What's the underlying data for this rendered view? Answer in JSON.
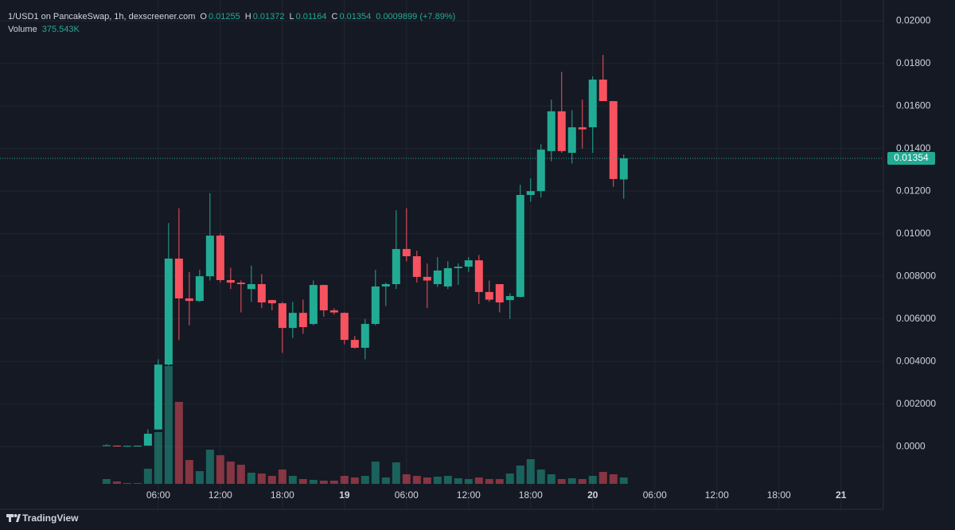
{
  "header": {
    "symbol": "1/USD1 on PancakeSwap, 1h, dexscreener.com",
    "open_label": "O",
    "open": "0.01255",
    "high_label": "H",
    "high": "0.01372",
    "low_label": "L",
    "low": "0.01164",
    "close_label": "C",
    "close": "0.01354",
    "change": "0.0009899 (+7.89%)",
    "volume_label": "Volume",
    "volume": "375.543K"
  },
  "last_price_label": "0.01354",
  "brand": "TradingView",
  "chart_data": {
    "type": "candlestick",
    "x": [
      1,
      2,
      3,
      4,
      5,
      6,
      7,
      8,
      9,
      10,
      11,
      12,
      13,
      14,
      15,
      16,
      17,
      18,
      19,
      20,
      21,
      22,
      23,
      24,
      25,
      26,
      27,
      28,
      29,
      30,
      31,
      32,
      33,
      34,
      35,
      36,
      37,
      38,
      39,
      40,
      41,
      42,
      43,
      44,
      45,
      46,
      47,
      48,
      49,
      50,
      51
    ],
    "open": [
      5e-05,
      4e-05,
      3e-05,
      3e-05,
      4e-05,
      0.0008,
      0.00385,
      0.00883,
      0.00696,
      0.00684,
      0.008,
      0.00991,
      0.00782,
      0.0077,
      0.0074,
      0.00763,
      0.00688,
      0.00673,
      0.00557,
      0.00628,
      0.00576,
      0.00759,
      0.0064,
      0.00628,
      0.00501,
      0.00464,
      0.00576,
      0.00752,
      0.00763,
      0.00928,
      0.00894,
      0.00797,
      0.00763,
      0.00752,
      0.00838,
      0.00845,
      0.00875,
      0.00726,
      0.00763,
      0.00688,
      0.00703,
      0.01182,
      0.012,
      0.01388,
      0.01575,
      0.0138,
      0.015,
      0.015,
      0.01724,
      0.01623,
      0.01255
    ],
    "high": [
      0.0001,
      5e-05,
      4e-05,
      4e-05,
      0.0008,
      0.0041,
      0.0105,
      0.0112,
      0.0082,
      0.0083,
      0.0119,
      0.01,
      0.0084,
      0.0078,
      0.0085,
      0.0081,
      0.0069,
      0.0068,
      0.0068,
      0.0069,
      0.0078,
      0.0076,
      0.0065,
      0.0063,
      0.0052,
      0.006,
      0.0083,
      0.0077,
      0.0111,
      0.0112,
      0.0092,
      0.0086,
      0.0089,
      0.0087,
      0.0086,
      0.0089,
      0.009,
      0.0078,
      0.0076,
      0.0072,
      0.0123,
      0.0126,
      0.0142,
      0.0163,
      0.0176,
      0.0158,
      0.0163,
      0.0174,
      0.0184,
      0.0162,
      0.01372
    ],
    "low": [
      3e-05,
      2e-05,
      2e-05,
      2e-05,
      4e-05,
      0.0008,
      0.0038,
      0.005,
      0.0057,
      0.0068,
      0.0078,
      0.0077,
      0.0074,
      0.0063,
      0.0068,
      0.0065,
      0.0064,
      0.0044,
      0.0051,
      0.0053,
      0.0057,
      0.0061,
      0.0062,
      0.0048,
      0.0046,
      0.0041,
      0.0057,
      0.0066,
      0.0074,
      0.0087,
      0.0077,
      0.0065,
      0.0075,
      0.0074,
      0.0076,
      0.0082,
      0.0067,
      0.0068,
      0.0063,
      0.006,
      0.007,
      0.0115,
      0.0117,
      0.0134,
      0.0138,
      0.0133,
      0.014,
      0.0138,
      0.0163,
      0.0122,
      0.01164
    ],
    "close": [
      6e-05,
      3e-05,
      3e-05,
      4e-05,
      0.0006,
      0.00385,
      0.00883,
      0.00696,
      0.00684,
      0.008,
      0.00991,
      0.00782,
      0.0077,
      0.00763,
      0.00763,
      0.00677,
      0.00673,
      0.00557,
      0.00628,
      0.00561,
      0.00759,
      0.0064,
      0.0063,
      0.00501,
      0.00464,
      0.00576,
      0.00752,
      0.00763,
      0.00928,
      0.00894,
      0.00797,
      0.0078,
      0.00827,
      0.00838,
      0.00845,
      0.00875,
      0.00726,
      0.0069,
      0.00677,
      0.00707,
      0.01182,
      0.012,
      0.01395,
      0.01575,
      0.01388,
      0.015,
      0.0149,
      0.01724,
      0.01623,
      0.01257,
      0.01354
    ],
    "volume": [
      282000,
      141000,
      47000,
      47000,
      893000,
      3055000,
      6956000,
      4841000,
      1410000,
      752000,
      2021000,
      1692000,
      1316000,
      1128000,
      658000,
      611000,
      470000,
      846000,
      470000,
      282000,
      235000,
      188000,
      188000,
      470000,
      376000,
      470000,
      1316000,
      376000,
      1269000,
      564000,
      470000,
      376000,
      423000,
      470000,
      329000,
      282000,
      376000,
      282000,
      282000,
      611000,
      1081000,
      1457000,
      846000,
      564000,
      282000,
      329000,
      282000,
      470000,
      705000,
      564000,
      375543
    ],
    "up_color": "#22ab94",
    "down_color": "#f7525f",
    "xlim": [
      -9.3,
      76.1
    ],
    "xticks": [
      {
        "value": 6,
        "label": "06:00"
      },
      {
        "value": 12,
        "label": "12:00"
      },
      {
        "value": 18,
        "label": "18:00"
      },
      {
        "value": 24,
        "label": "19"
      },
      {
        "value": 30,
        "label": "06:00"
      },
      {
        "value": 36,
        "label": "12:00"
      },
      {
        "value": 42,
        "label": "18:00"
      },
      {
        "value": 48,
        "label": "20"
      },
      {
        "value": 54,
        "label": "06:00"
      },
      {
        "value": 60,
        "label": "12:00"
      },
      {
        "value": 66,
        "label": "18:00"
      },
      {
        "value": 72,
        "label": "21"
      }
    ],
    "ylim": [
      -0.00295,
      0.02098
    ],
    "yticks": [
      {
        "value": 0.02,
        "label": "0.02000"
      },
      {
        "value": 0.018,
        "label": "0.01800"
      },
      {
        "value": 0.016,
        "label": "0.01600"
      },
      {
        "value": 0.014,
        "label": "0.01400"
      },
      {
        "value": 0.012,
        "label": "0.01200"
      },
      {
        "value": 0.01,
        "label": "0.01000"
      },
      {
        "value": 0.008,
        "label": "0.008000"
      },
      {
        "value": 0.006,
        "label": "0.006000"
      },
      {
        "value": 0.004,
        "label": "0.004000"
      },
      {
        "value": 0.002,
        "label": "0.002000"
      },
      {
        "value": 0,
        "label": "0.0000"
      }
    ],
    "grid": true
  }
}
